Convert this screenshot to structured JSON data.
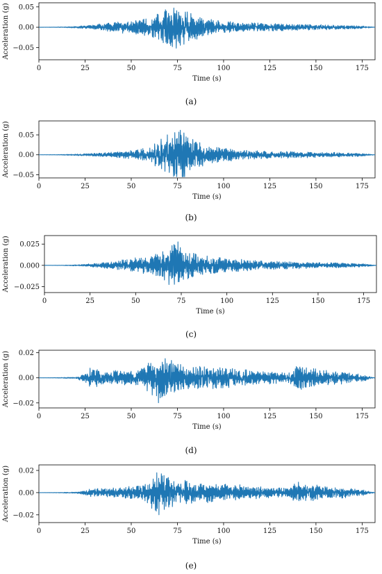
{
  "chart_data": [
    {
      "type": "line",
      "caption": "(a)",
      "xlabel": "Time (s)",
      "ylabel": "Acceleration (g)",
      "xlim": [
        0,
        182
      ],
      "ylim": [
        -0.08,
        0.06
      ],
      "xticks": [
        0,
        25,
        50,
        75,
        100,
        125,
        150,
        175
      ],
      "xtick_labels": [
        "0",
        "25",
        "50",
        "75",
        "100",
        "125",
        "150",
        "175"
      ],
      "yticks": [
        0.05,
        0.0,
        -0.05
      ],
      "ytick_labels": [
        "0.05",
        "0.00",
        "−0.05"
      ],
      "color": "#1f77b4",
      "series": [
        {
          "x": [
            0,
            10,
            20,
            30,
            40,
            50,
            60,
            65,
            70,
            72,
            74,
            76,
            78,
            80,
            85,
            90,
            95,
            100,
            110,
            125,
            140,
            160,
            175,
            182
          ],
          "y_envelope": [
            0.0,
            0.0005,
            0.002,
            0.006,
            0.012,
            0.018,
            0.025,
            0.038,
            0.05,
            0.055,
            0.06,
            0.057,
            0.05,
            0.042,
            0.032,
            0.025,
            0.02,
            0.016,
            0.012,
            0.01,
            0.008,
            0.006,
            0.004,
            0.0
          ],
          "peak_max": 0.055,
          "peak_min": -0.075
        }
      ]
    },
    {
      "type": "line",
      "caption": "(b)",
      "xlabel": "Time (s)",
      "ylabel": "Acceleration (g)",
      "xlim": [
        0,
        182
      ],
      "ylim": [
        -0.058,
        0.085
      ],
      "xticks": [
        0,
        25,
        50,
        75,
        100,
        125,
        150,
        175
      ],
      "xtick_labels": [
        "0",
        "25",
        "50",
        "75",
        "100",
        "125",
        "150",
        "175"
      ],
      "yticks": [
        0.05,
        0.0,
        -0.05
      ],
      "ytick_labels": [
        "0.05",
        "0.00",
        "−0.05"
      ],
      "color": "#1f77b4",
      "series": [
        {
          "x": [
            0,
            10,
            20,
            30,
            40,
            50,
            60,
            65,
            70,
            72,
            74,
            76,
            78,
            80,
            85,
            90,
            95,
            100,
            110,
            125,
            140,
            160,
            175,
            182
          ],
          "y_envelope": [
            0.0,
            0.0005,
            0.002,
            0.004,
            0.007,
            0.012,
            0.02,
            0.035,
            0.055,
            0.06,
            0.065,
            0.07,
            0.075,
            0.05,
            0.035,
            0.028,
            0.022,
            0.018,
            0.013,
            0.01,
            0.008,
            0.006,
            0.004,
            0.0
          ],
          "peak_max": 0.078,
          "peak_min": -0.055
        }
      ]
    },
    {
      "type": "line",
      "caption": "(c)",
      "xlabel": "Time (s)",
      "ylabel": "Acceleration (g)",
      "xlim": [
        0,
        182
      ],
      "ylim": [
        -0.032,
        0.035
      ],
      "xticks": [
        0,
        25,
        50,
        75,
        100,
        125,
        150,
        175
      ],
      "xtick_labels": [
        "0",
        "25",
        "50",
        "75",
        "100",
        "125",
        "150",
        "175"
      ],
      "yticks": [
        0.025,
        0.0,
        -0.025
      ],
      "ytick_labels": [
        "0.025",
        "0.000",
        "−0.025"
      ],
      "color": "#1f77b4",
      "series": [
        {
          "x": [
            0,
            10,
            20,
            30,
            40,
            50,
            60,
            65,
            70,
            72,
            74,
            76,
            78,
            80,
            85,
            90,
            95,
            100,
            110,
            125,
            140,
            160,
            175,
            182
          ],
          "y_envelope": [
            0.0,
            0.0002,
            0.001,
            0.003,
            0.006,
            0.009,
            0.012,
            0.018,
            0.028,
            0.032,
            0.03,
            0.025,
            0.02,
            0.017,
            0.014,
            0.012,
            0.01,
            0.009,
            0.007,
            0.005,
            0.004,
            0.003,
            0.002,
            0.0
          ],
          "peak_max": 0.033,
          "peak_min": -0.03
        }
      ]
    },
    {
      "type": "line",
      "caption": "(d)",
      "xlabel": "Time (s)",
      "ylabel": "Acceleration (g)",
      "xlim": [
        0,
        182
      ],
      "ylim": [
        -0.024,
        0.022
      ],
      "xticks": [
        0,
        25,
        50,
        75,
        100,
        125,
        150,
        175
      ],
      "xtick_labels": [
        "0",
        "25",
        "50",
        "75",
        "100",
        "125",
        "150",
        "175"
      ],
      "yticks": [
        0.02,
        0.0,
        -0.02
      ],
      "ytick_labels": [
        "0.02",
        "0.00",
        "−0.02"
      ],
      "color": "#1f77b4",
      "series": [
        {
          "x": [
            0,
            10,
            20,
            25,
            28,
            35,
            45,
            55,
            60,
            63,
            66,
            70,
            75,
            80,
            90,
            100,
            110,
            125,
            135,
            140,
            145,
            155,
            165,
            175,
            182
          ],
          "y_envelope": [
            0.0,
            0.0002,
            0.0006,
            0.004,
            0.009,
            0.006,
            0.006,
            0.008,
            0.014,
            0.02,
            0.021,
            0.016,
            0.012,
            0.01,
            0.009,
            0.009,
            0.007,
            0.005,
            0.004,
            0.011,
            0.009,
            0.006,
            0.005,
            0.003,
            0.0
          ],
          "peak_max": 0.021,
          "peak_min": -0.022
        }
      ]
    },
    {
      "type": "line",
      "caption": "(e)",
      "xlabel": "Time (s)",
      "ylabel": "Acceleration (g)",
      "xlim": [
        0,
        182
      ],
      "ylim": [
        -0.027,
        0.025
      ],
      "xticks": [
        0,
        25,
        50,
        75,
        100,
        125,
        150,
        175
      ],
      "xtick_labels": [
        "0",
        "25",
        "50",
        "75",
        "100",
        "125",
        "150",
        "175"
      ],
      "yticks": [
        0.02,
        0.0,
        -0.02
      ],
      "ytick_labels": [
        "0.02",
        "0.00",
        "−0.02"
      ],
      "color": "#1f77b4",
      "series": [
        {
          "x": [
            0,
            10,
            20,
            25,
            28,
            35,
            45,
            55,
            60,
            63,
            66,
            70,
            75,
            80,
            90,
            100,
            110,
            125,
            135,
            140,
            145,
            155,
            165,
            175,
            182
          ],
          "y_envelope": [
            0.0,
            0.0002,
            0.0006,
            0.002,
            0.004,
            0.004,
            0.005,
            0.008,
            0.014,
            0.019,
            0.022,
            0.017,
            0.012,
            0.011,
            0.01,
            0.009,
            0.007,
            0.005,
            0.004,
            0.011,
            0.009,
            0.006,
            0.005,
            0.003,
            0.0
          ],
          "peak_max": 0.022,
          "peak_min": -0.026
        }
      ]
    }
  ]
}
